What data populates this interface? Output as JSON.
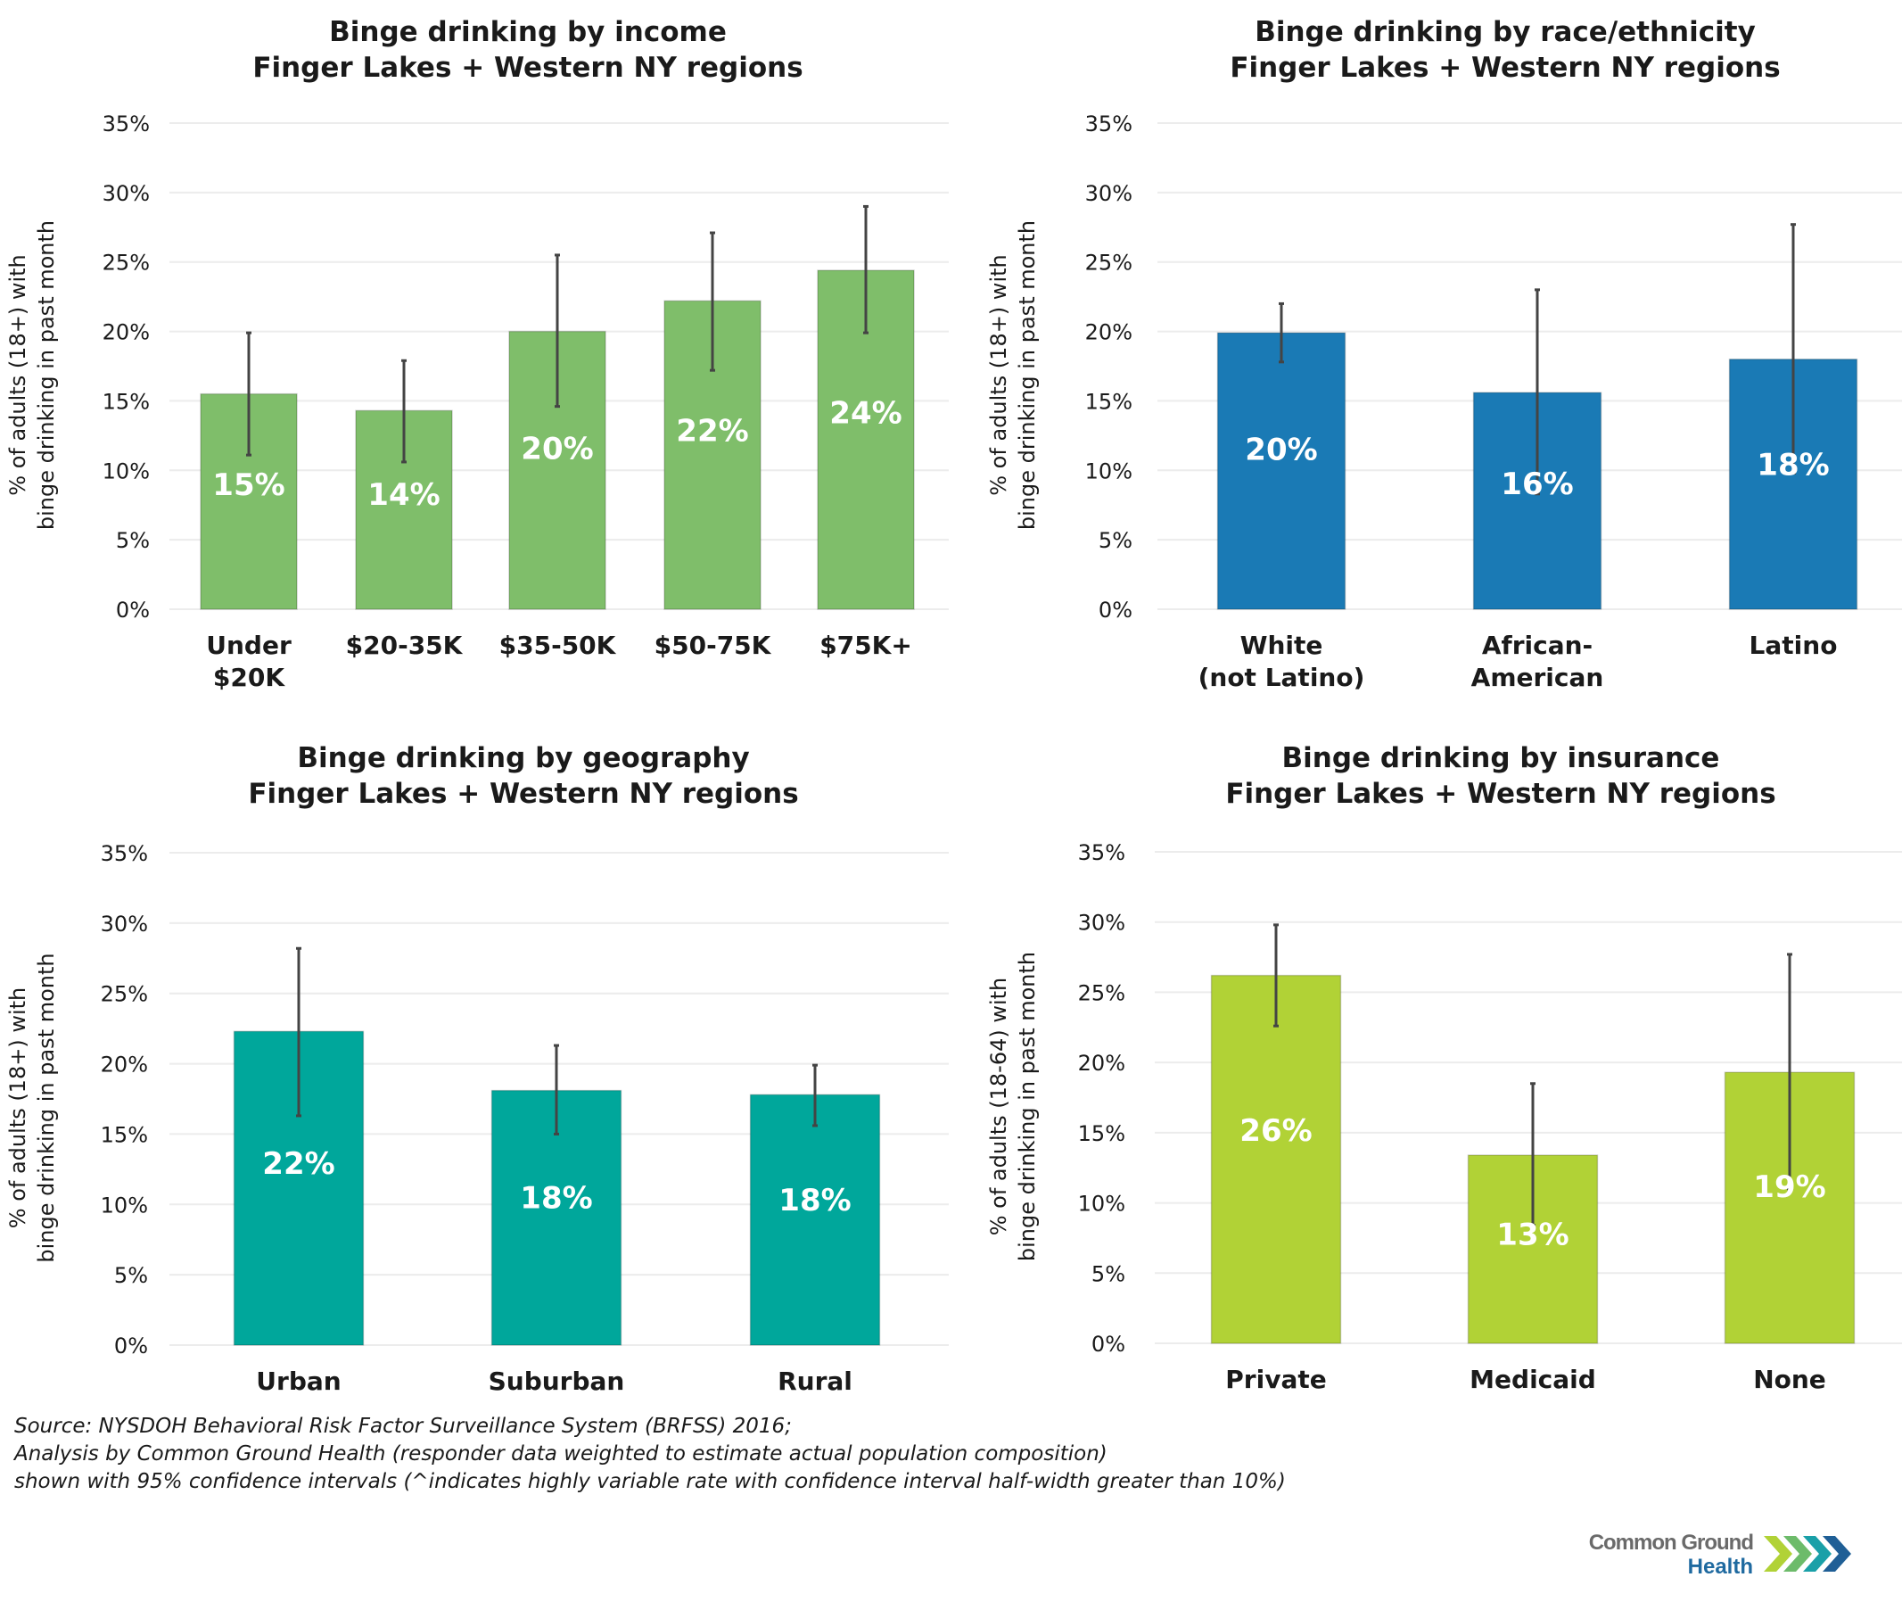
{
  "chart_data": [
    {
      "type": "bar",
      "title": [
        "Binge drinking by income",
        "Finger Lakes + Western NY regions"
      ],
      "xlabel": "",
      "ylabel": [
        "% of adults (18+) with",
        "binge drinking in past month"
      ],
      "ylim": [
        0,
        35
      ],
      "yticks": [
        "0%",
        "5%",
        "10%",
        "15%",
        "20%",
        "25%",
        "30%",
        "35%"
      ],
      "grid": true,
      "color": "#7fbe6a",
      "categories": [
        [
          "Under",
          "$20K"
        ],
        [
          "$20-35K"
        ],
        [
          "$35-50K"
        ],
        [
          "$50-75K"
        ],
        [
          "$75K+"
        ]
      ],
      "values": [
        15.5,
        14.3,
        20.0,
        22.2,
        24.4
      ],
      "data_labels": [
        "15%",
        "14%",
        "20%",
        "22%",
        "24%"
      ],
      "ci_low": [
        11.1,
        10.6,
        14.6,
        17.2,
        19.9
      ],
      "ci_high": [
        19.9,
        17.9,
        25.5,
        27.1,
        29.0
      ]
    },
    {
      "type": "bar",
      "title": [
        "Binge drinking by race/ethnicity",
        "Finger Lakes + Western NY regions"
      ],
      "xlabel": "",
      "ylabel": [
        "% of adults (18+) with",
        "binge drinking in past month"
      ],
      "ylim": [
        0,
        35
      ],
      "yticks": [
        "0%",
        "5%",
        "10%",
        "15%",
        "20%",
        "25%",
        "30%",
        "35%"
      ],
      "grid": true,
      "color": "#1a7ab5",
      "categories": [
        [
          "White",
          "(not Latino)"
        ],
        [
          "African-",
          "American"
        ],
        [
          "Latino"
        ]
      ],
      "values": [
        19.9,
        15.6,
        18.0
      ],
      "data_labels": [
        "20%",
        "16%",
        "18%"
      ],
      "ci_low": [
        17.8,
        8.3,
        9.8
      ],
      "ci_high": [
        22.0,
        23.0,
        27.7
      ]
    },
    {
      "type": "bar",
      "title": [
        "Binge drinking by geography",
        "Finger Lakes + Western NY regions"
      ],
      "xlabel": "",
      "ylabel": [
        "% of adults (18+) with",
        "binge drinking in past month"
      ],
      "ylim": [
        0,
        35
      ],
      "yticks": [
        "0%",
        "5%",
        "10%",
        "15%",
        "20%",
        "25%",
        "30%",
        "35%"
      ],
      "grid": true,
      "color": "#00a79b",
      "categories": [
        [
          "Urban"
        ],
        [
          "Suburban"
        ],
        [
          "Rural"
        ]
      ],
      "values": [
        22.3,
        18.1,
        17.8
      ],
      "data_labels": [
        "22%",
        "18%",
        "18%"
      ],
      "ci_low": [
        16.3,
        15.0,
        15.6
      ],
      "ci_high": [
        28.2,
        21.3,
        19.9
      ]
    },
    {
      "type": "bar",
      "title": [
        "Binge drinking by insurance",
        "Finger Lakes + Western NY regions"
      ],
      "xlabel": "",
      "ylabel": [
        "% of adults (18-64) with",
        "binge drinking in past month"
      ],
      "ylim": [
        0,
        35
      ],
      "yticks": [
        "0%",
        "5%",
        "10%",
        "15%",
        "20%",
        "25%",
        "30%",
        "35%"
      ],
      "grid": true,
      "color": "#b1d236",
      "categories": [
        [
          "Private"
        ],
        [
          "Medicaid"
        ],
        [
          "None"
        ]
      ],
      "values": [
        26.2,
        13.4,
        19.3
      ],
      "data_labels": [
        "26%",
        "13%",
        "19%"
      ],
      "ci_low": [
        22.6,
        8.4,
        11.0
      ],
      "ci_high": [
        29.8,
        18.5,
        27.7
      ]
    }
  ],
  "footnote": {
    "line1": "Source: NYSDOH Behavioral Risk Factor Surveillance System (BRFSS) 2016;",
    "line2": "Analysis by Common Ground Health (responder data weighted to estimate actual population composition)",
    "line3": "shown with 95% confidence intervals (^indicates highly variable rate with confidence interval half-width greater than 10%)"
  },
  "logo": {
    "line1": "Common Ground",
    "line2": "Health",
    "chevron_colors": [
      "#b1d236",
      "#6dbb6a",
      "#1aa0a8",
      "#1f5f96"
    ]
  }
}
